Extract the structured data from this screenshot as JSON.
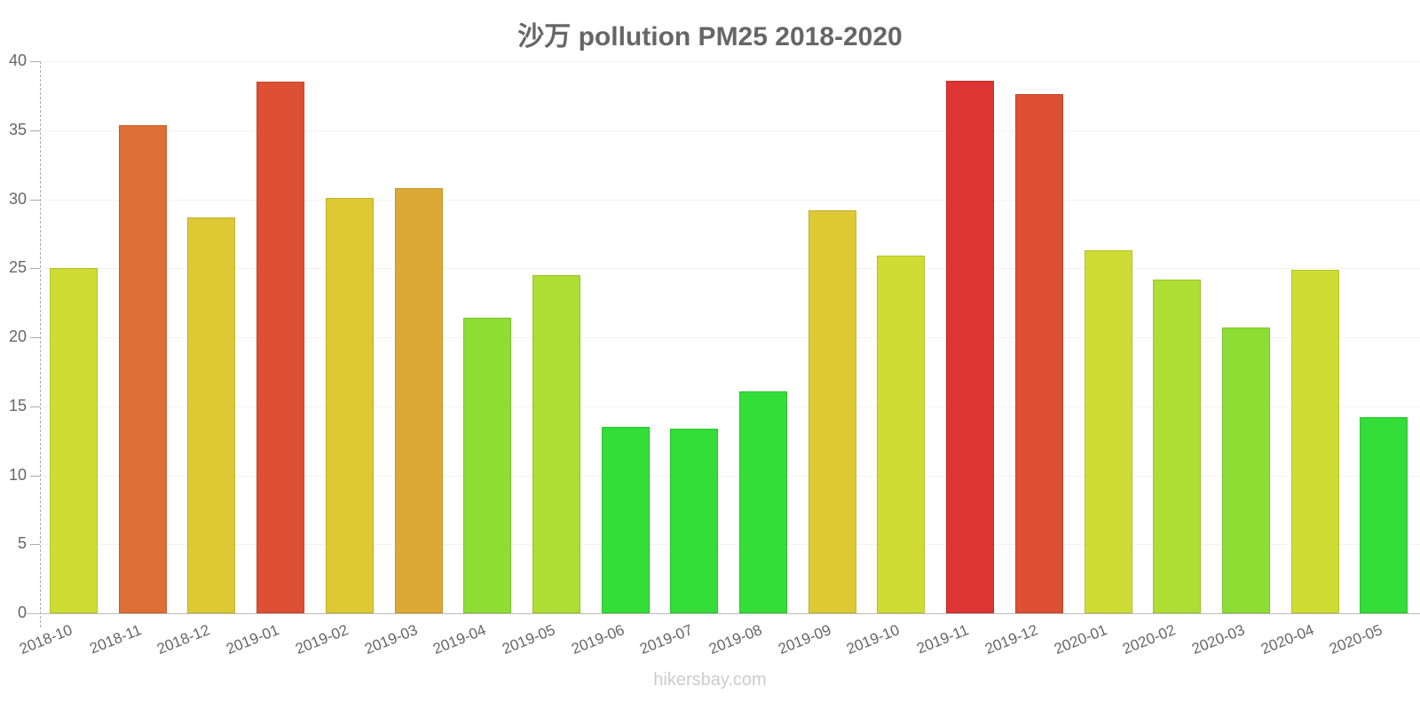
{
  "chart_data": {
    "type": "bar",
    "title": "沙万 pollution PM25 2018-2020",
    "xlabel": "",
    "ylabel": "",
    "ylim": [
      0,
      40
    ],
    "yticks": [
      0,
      5,
      10,
      15,
      20,
      25,
      30,
      35,
      40
    ],
    "grid": true,
    "legend": null,
    "categories": [
      "2018-10",
      "2018-11",
      "2018-12",
      "2019-01",
      "2019-02",
      "2019-03",
      "2019-04",
      "2019-05",
      "2019-06",
      "2019-07",
      "2019-08",
      "2019-09",
      "2019-10",
      "2019-11",
      "2019-12",
      "2020-01",
      "2020-02",
      "2020-03",
      "2020-04",
      "2020-05"
    ],
    "values": [
      25.0,
      35.4,
      28.7,
      38.5,
      30.1,
      30.8,
      21.4,
      24.5,
      13.5,
      13.4,
      16.1,
      29.2,
      25.9,
      38.6,
      37.6,
      26.3,
      24.2,
      20.7,
      24.9,
      14.2
    ],
    "colors": [
      "#cfdc34",
      "#dd6f34",
      "#dcc934",
      "#dd5034",
      "#dcc934",
      "#dca934",
      "#8edd34",
      "#aedd34",
      "#34dd38",
      "#34dd38",
      "#34dd38",
      "#dcc934",
      "#cfdc34",
      "#dd3434",
      "#dd5034",
      "#cfdc34",
      "#aedd34",
      "#8edd34",
      "#cfdc34",
      "#34dd38"
    ]
  },
  "watermark": "hikersbay.com"
}
